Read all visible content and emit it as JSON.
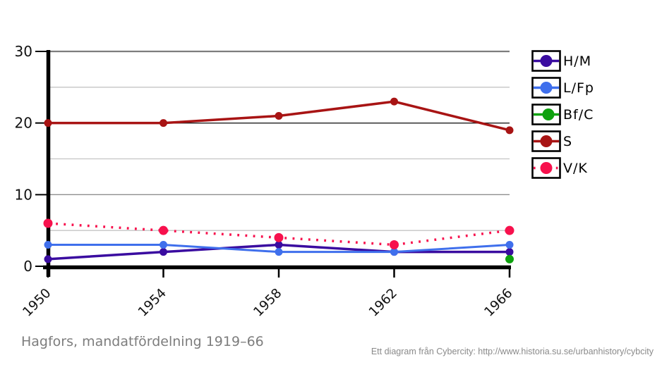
{
  "title": "Hagfors, mandatfördelning 1919–66",
  "footer": "Ett diagram från Cybercity: http://www.historia.su.se/urbanhistory/cybcity",
  "chart_data": {
    "type": "line",
    "title": "Hagfors, mandatfördelning 1919–66",
    "x": [
      1950,
      1954,
      1958,
      1962,
      1966
    ],
    "series": [
      {
        "name": "H/M",
        "color": "#3a0ca0",
        "line": "solid",
        "width": 3.5,
        "dot_r": 5.5,
        "values": [
          1,
          2,
          3,
          2,
          2
        ]
      },
      {
        "name": "L/Fp",
        "color": "#3f6fec",
        "line": "solid",
        "width": 3,
        "dot_r": 5.5,
        "values": [
          3,
          3,
          2,
          2,
          3
        ]
      },
      {
        "name": "Bf/C",
        "color": "#0da10d",
        "line": "solid",
        "width": 3,
        "dot_r": 6,
        "values": [
          null,
          null,
          null,
          null,
          1
        ]
      },
      {
        "name": "S",
        "color": "#a81414",
        "line": "solid",
        "width": 3.5,
        "dot_r": 5.5,
        "values": [
          20,
          20,
          21,
          23,
          19
        ]
      },
      {
        "name": "V/K",
        "color": "#f7114d",
        "line": "dotted",
        "width": 3.5,
        "dot_r": 6.5,
        "values": [
          6,
          5,
          4,
          3,
          5
        ]
      }
    ],
    "ylim": [
      0,
      30
    ],
    "yticks": [
      0,
      10,
      20,
      30
    ],
    "yticks_minor": [
      5,
      15,
      25
    ],
    "grid": "on",
    "legend_position": "right",
    "xlabel": "",
    "ylabel": ""
  }
}
